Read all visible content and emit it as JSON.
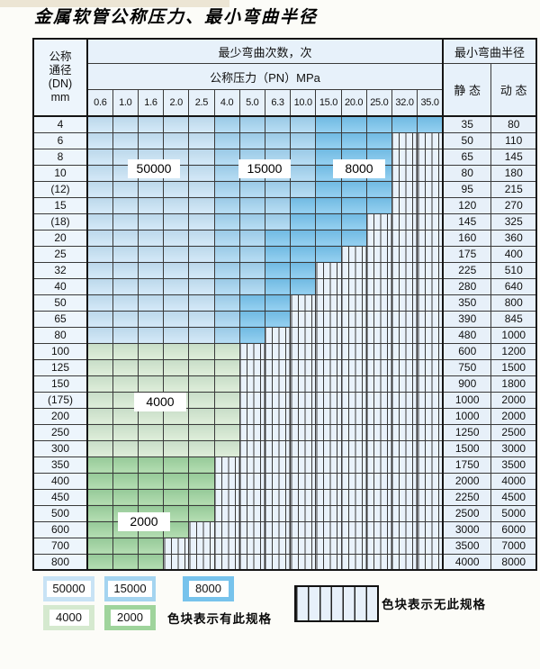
{
  "title": "金属软管公称压力、最小弯曲半径",
  "table": {
    "dn_header_lines": [
      "公称",
      "通径",
      "(DN)",
      "mm"
    ],
    "cycles_header": "最少弯曲次数，次",
    "pressure_header": "公称压力（PN）MPa",
    "radius_header": "最小弯曲半径",
    "static_header": "静 态",
    "dynamic_header": "动 态",
    "pressure_columns": [
      "0.6",
      "1.0",
      "1.6",
      "2.0",
      "2.5",
      "4.0",
      "5.0",
      "6.3",
      "10.0",
      "15.0",
      "20.0",
      "25.0",
      "32.0",
      "35.0"
    ],
    "cycle_colors": {
      "50000": "#c8e3f5",
      "15000": "#a4d4f0",
      "8000": "#77c3ec",
      "4000": "#d5e9cf",
      "2000": "#9fd49c"
    },
    "rows": [
      {
        "dn": "4",
        "bands": [
          [
            "50000",
            5
          ],
          [
            "15000",
            9
          ],
          [
            "8000",
            14
          ]
        ],
        "static": "35",
        "dynamic": "80"
      },
      {
        "dn": "6",
        "bands": [
          [
            "50000",
            5
          ],
          [
            "15000",
            9
          ],
          [
            "8000",
            12
          ]
        ],
        "static": "50",
        "dynamic": "110"
      },
      {
        "dn": "8",
        "bands": [
          [
            "50000",
            5
          ],
          [
            "15000",
            9
          ],
          [
            "8000",
            12
          ]
        ],
        "static": "65",
        "dynamic": "145"
      },
      {
        "dn": "10",
        "bands": [
          [
            "50000",
            5
          ],
          [
            "15000",
            9
          ],
          [
            "8000",
            12
          ]
        ],
        "static": "80",
        "dynamic": "180"
      },
      {
        "dn": "(12)",
        "bands": [
          [
            "50000",
            5
          ],
          [
            "15000",
            9
          ],
          [
            "8000",
            12
          ]
        ],
        "static": "95",
        "dynamic": "215"
      },
      {
        "dn": "15",
        "bands": [
          [
            "50000",
            5
          ],
          [
            "15000",
            8
          ],
          [
            "8000",
            12
          ]
        ],
        "static": "120",
        "dynamic": "270"
      },
      {
        "dn": "(18)",
        "bands": [
          [
            "50000",
            5
          ],
          [
            "15000",
            8
          ],
          [
            "8000",
            11
          ]
        ],
        "static": "145",
        "dynamic": "325"
      },
      {
        "dn": "20",
        "bands": [
          [
            "50000",
            5
          ],
          [
            "15000",
            7
          ],
          [
            "8000",
            11
          ]
        ],
        "static": "160",
        "dynamic": "360"
      },
      {
        "dn": "25",
        "bands": [
          [
            "50000",
            5
          ],
          [
            "15000",
            7
          ],
          [
            "8000",
            10
          ]
        ],
        "static": "175",
        "dynamic": "400"
      },
      {
        "dn": "32",
        "bands": [
          [
            "50000",
            5
          ],
          [
            "15000",
            7
          ],
          [
            "8000",
            9
          ]
        ],
        "static": "225",
        "dynamic": "510"
      },
      {
        "dn": "40",
        "bands": [
          [
            "50000",
            5
          ],
          [
            "15000",
            7
          ],
          [
            "8000",
            9
          ]
        ],
        "static": "280",
        "dynamic": "640"
      },
      {
        "dn": "50",
        "bands": [
          [
            "50000",
            5
          ],
          [
            "15000",
            6
          ],
          [
            "8000",
            8
          ]
        ],
        "static": "350",
        "dynamic": "800"
      },
      {
        "dn": "65",
        "bands": [
          [
            "50000",
            5
          ],
          [
            "15000",
            6
          ],
          [
            "8000",
            8
          ]
        ],
        "static": "390",
        "dynamic": "845"
      },
      {
        "dn": "80",
        "bands": [
          [
            "50000",
            5
          ],
          [
            "15000",
            6
          ],
          [
            "8000",
            7
          ]
        ],
        "static": "480",
        "dynamic": "1000"
      },
      {
        "dn": "100",
        "bands": [
          [
            "4000",
            6
          ]
        ],
        "static": "600",
        "dynamic": "1200"
      },
      {
        "dn": "125",
        "bands": [
          [
            "4000",
            6
          ]
        ],
        "static": "750",
        "dynamic": "1500"
      },
      {
        "dn": "150",
        "bands": [
          [
            "4000",
            6
          ]
        ],
        "static": "900",
        "dynamic": "1800"
      },
      {
        "dn": "(175)",
        "bands": [
          [
            "4000",
            6
          ]
        ],
        "static": "1000",
        "dynamic": "2000"
      },
      {
        "dn": "200",
        "bands": [
          [
            "4000",
            6
          ]
        ],
        "static": "1000",
        "dynamic": "2000"
      },
      {
        "dn": "250",
        "bands": [
          [
            "4000",
            6
          ]
        ],
        "static": "1250",
        "dynamic": "2500"
      },
      {
        "dn": "300",
        "bands": [
          [
            "4000",
            6
          ]
        ],
        "static": "1500",
        "dynamic": "3000"
      },
      {
        "dn": "350",
        "bands": [
          [
            "2000",
            5
          ]
        ],
        "static": "1750",
        "dynamic": "3500"
      },
      {
        "dn": "400",
        "bands": [
          [
            "2000",
            5
          ]
        ],
        "static": "2000",
        "dynamic": "4000"
      },
      {
        "dn": "450",
        "bands": [
          [
            "2000",
            5
          ]
        ],
        "static": "2250",
        "dynamic": "4500"
      },
      {
        "dn": "500",
        "bands": [
          [
            "2000",
            5
          ]
        ],
        "static": "2500",
        "dynamic": "5000"
      },
      {
        "dn": "600",
        "bands": [
          [
            "2000",
            4
          ]
        ],
        "static": "3000",
        "dynamic": "6000"
      },
      {
        "dn": "700",
        "bands": [
          [
            "2000",
            3
          ]
        ],
        "static": "3500",
        "dynamic": "7000"
      },
      {
        "dn": "800",
        "bands": [
          [
            "2000",
            3
          ]
        ],
        "static": "4000",
        "dynamic": "8000"
      }
    ],
    "region_labels": [
      "50000",
      "15000",
      "8000",
      "4000",
      "2000"
    ]
  },
  "legend": {
    "row1": [
      "50000",
      "15000",
      "8000"
    ],
    "row2": [
      "4000",
      "2000"
    ],
    "has_spec_text": "色块表示有此规格",
    "no_spec_text": "色块表示无此规格"
  }
}
